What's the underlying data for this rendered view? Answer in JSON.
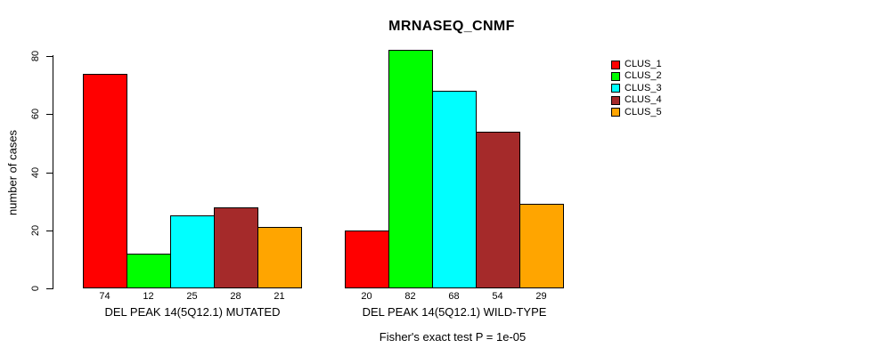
{
  "chart_data": {
    "type": "bar",
    "title": "MRNASEQ_CNMF",
    "ylabel": "number of cases",
    "ylim": [
      0,
      82
    ],
    "yticks": [
      0,
      20,
      40,
      60,
      80
    ],
    "grid": false,
    "legend_position": "outside-top-right",
    "series": [
      "CLUS_1",
      "CLUS_2",
      "CLUS_3",
      "CLUS_4",
      "CLUS_5"
    ],
    "colors": [
      "#FF0000",
      "#00FF00",
      "#00FFFF",
      "#A52A2A",
      "#FFA500"
    ],
    "groups": [
      {
        "label": "DEL PEAK 14(5Q12.1) MUTATED",
        "values": [
          74,
          12,
          25,
          28,
          21
        ]
      },
      {
        "label": "DEL PEAK 14(5Q12.1) WILD-TYPE",
        "values": [
          20,
          82,
          68,
          54,
          29
        ]
      }
    ],
    "bar_value_labels_shown": true,
    "annotation": "Fisher's exact test P = 1e-05"
  }
}
